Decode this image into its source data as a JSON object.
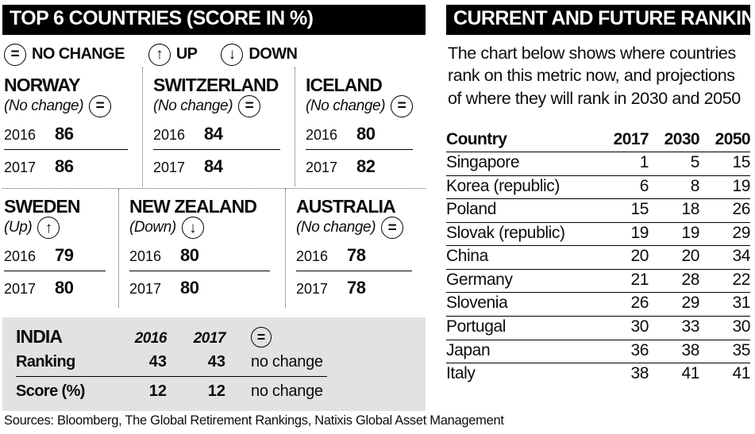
{
  "left_panel": {
    "title": "TOP 6 COUNTRIES (SCORE IN %)",
    "legend": {
      "items": [
        {
          "icon": "equals-circle-icon",
          "glyph": "=",
          "label": "NO CHANGE"
        },
        {
          "icon": "up-arrow-circle-icon",
          "glyph": "↑",
          "label": "UP"
        },
        {
          "icon": "down-arrow-circle-icon",
          "glyph": "↓",
          "label": "DOWN"
        }
      ]
    },
    "countries": [
      {
        "name": "NORWAY",
        "change_label": "(No change)",
        "icon": "equals-circle-icon",
        "glyph": "=",
        "rows": [
          {
            "year": "2016",
            "value": "86"
          },
          {
            "year": "2017",
            "value": "86"
          }
        ]
      },
      {
        "name": "SWITZERLAND",
        "change_label": "(No change)",
        "icon": "equals-circle-icon",
        "glyph": "=",
        "rows": [
          {
            "year": "2016",
            "value": "84"
          },
          {
            "year": "2017",
            "value": "84"
          }
        ]
      },
      {
        "name": "ICELAND",
        "change_label": "(No change)",
        "icon": "equals-circle-icon",
        "glyph": "=",
        "rows": [
          {
            "year": "2016",
            "value": "80"
          },
          {
            "year": "2017",
            "value": "82"
          }
        ]
      },
      {
        "name": "SWEDEN",
        "change_label": "(Up)",
        "icon": "up-arrow-circle-icon",
        "glyph": "↑",
        "rows": [
          {
            "year": "2016",
            "value": "79"
          },
          {
            "year": "2017",
            "value": "80"
          }
        ]
      },
      {
        "name": "NEW ZEALAND",
        "change_label": "(Down)",
        "icon": "down-arrow-circle-icon",
        "glyph": "↓",
        "rows": [
          {
            "year": "2016",
            "value": "80"
          },
          {
            "year": "2017",
            "value": "80"
          }
        ]
      },
      {
        "name": "AUSTRALIA",
        "change_label": "(No change)",
        "icon": "equals-circle-icon",
        "glyph": "=",
        "rows": [
          {
            "year": "2016",
            "value": "78"
          },
          {
            "year": "2017",
            "value": "78"
          }
        ]
      }
    ],
    "india": {
      "title": "INDIA",
      "year_headers": [
        "2016",
        "2017"
      ],
      "icon": "equals-circle-icon",
      "glyph": "=",
      "rows": [
        {
          "label": "Ranking",
          "v1": "43",
          "v2": "43",
          "status": "no change"
        },
        {
          "label": "Score (%)",
          "v1": "12",
          "v2": "12",
          "status": "no change"
        }
      ]
    }
  },
  "right_panel": {
    "title": "CURRENT AND FUTURE RANKINGS",
    "description": "The chart below shows where countries rank on this metric now, and projections of where they will rank in 2030 and 2050",
    "table": {
      "headers": [
        "Country",
        "2017",
        "2030",
        "2050"
      ],
      "rows": [
        [
          "Singapore",
          "1",
          "5",
          "15"
        ],
        [
          "Korea (republic)",
          "6",
          "8",
          "19"
        ],
        [
          "Poland",
          "15",
          "18",
          "26"
        ],
        [
          "Slovak (republic)",
          "19",
          "19",
          "29"
        ],
        [
          "China",
          "20",
          "20",
          "34"
        ],
        [
          "Germany",
          "21",
          "28",
          "22"
        ],
        [
          "Slovenia",
          "26",
          "29",
          "31"
        ],
        [
          "Portugal",
          "30",
          "33",
          "30"
        ],
        [
          "Japan",
          "36",
          "38",
          "35"
        ],
        [
          "Italy",
          "38",
          "41",
          "41"
        ]
      ]
    }
  },
  "footer": {
    "sources": "Sources: Bloomberg, The Global Retirement Rankings, Natixis Global Asset Management"
  },
  "colors": {
    "banner_bg": "#000000",
    "banner_text": "#ffffff",
    "india_box_bg": "#e2e2e0",
    "text": "#0c0c0c",
    "background": "#ffffff"
  },
  "chart_data": [
    {
      "type": "table",
      "title": "TOP 6 COUNTRIES (SCORE IN %)",
      "categories": [
        "NORWAY",
        "SWITZERLAND",
        "ICELAND",
        "SWEDEN",
        "NEW ZEALAND",
        "AUSTRALIA"
      ],
      "series": [
        {
          "name": "2016",
          "values": [
            86,
            84,
            80,
            79,
            80,
            78
          ]
        },
        {
          "name": "2017",
          "values": [
            86,
            84,
            82,
            80,
            80,
            78
          ]
        }
      ],
      "annotations": [
        "No change",
        "No change",
        "No change",
        "Up",
        "Down",
        "No change"
      ]
    },
    {
      "type": "table",
      "title": "INDIA",
      "categories": [
        "Ranking",
        "Score (%)"
      ],
      "series": [
        {
          "name": "2016",
          "values": [
            43,
            12
          ]
        },
        {
          "name": "2017",
          "values": [
            43,
            12
          ]
        }
      ],
      "annotations": [
        "no change",
        "no change"
      ]
    },
    {
      "type": "table",
      "title": "CURRENT AND FUTURE RANKINGS",
      "categories": [
        "Singapore",
        "Korea (republic)",
        "Poland",
        "Slovak (republic)",
        "China",
        "Germany",
        "Slovenia",
        "Portugal",
        "Japan",
        "Italy"
      ],
      "series": [
        {
          "name": "2017",
          "values": [
            1,
            6,
            15,
            19,
            20,
            21,
            26,
            30,
            36,
            38
          ]
        },
        {
          "name": "2030",
          "values": [
            5,
            8,
            18,
            19,
            20,
            28,
            29,
            33,
            38,
            41
          ]
        },
        {
          "name": "2050",
          "values": [
            15,
            19,
            26,
            29,
            34,
            22,
            31,
            30,
            35,
            41
          ]
        }
      ]
    }
  ]
}
